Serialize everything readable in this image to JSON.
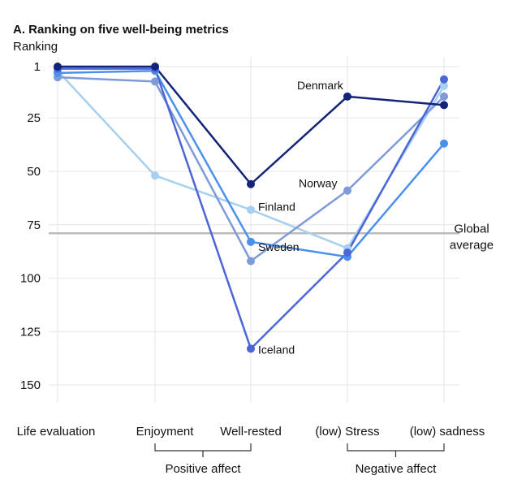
{
  "chart_data": {
    "type": "line",
    "title": "A. Ranking on five well-being metrics",
    "ylabel": "Ranking",
    "ylim_inverted": [
      1,
      160
    ],
    "y_ticks": [
      1,
      25,
      50,
      75,
      100,
      125,
      150
    ],
    "categories": [
      "Life evaluation",
      "Enjoyment",
      "Well-rested",
      "(low) Stress",
      "(low) sadness"
    ],
    "groups": [
      {
        "label": "Positive affect",
        "from": "Enjoyment",
        "to": "Well-rested"
      },
      {
        "label": "Negative affect",
        "from": "(low) Stress",
        "to": "(low) sadness"
      }
    ],
    "reference_line": {
      "value": 79,
      "label_line1": "Global",
      "label_line2": "average"
    },
    "grid": true,
    "series": [
      {
        "name": "Denmark",
        "color": "#14237a",
        "values": [
          1,
          1,
          56,
          15,
          19
        ]
      },
      {
        "name": "Norway",
        "color": "#7f9ad8",
        "values": [
          6,
          8,
          92,
          59,
          15
        ]
      },
      {
        "name": "Finland",
        "color": "#a7d0f0",
        "values": [
          3,
          52,
          68,
          86,
          10
        ]
      },
      {
        "name": "Sweden",
        "color": "#4a91ee",
        "values": [
          4,
          3,
          83,
          90,
          37
        ]
      },
      {
        "name": "Iceland",
        "color": "#4d66d6",
        "values": [
          2,
          2,
          133,
          88,
          7
        ]
      }
    ],
    "annotations": [
      {
        "series": "Denmark",
        "point": 3,
        "dx": -62,
        "dy": -9
      },
      {
        "series": "Norway",
        "point": 3,
        "dx": -60,
        "dy": -4
      },
      {
        "series": "Finland",
        "point": 2,
        "dx": 9,
        "dy": 1
      },
      {
        "series": "Sweden",
        "point": 2,
        "dx": 9,
        "dy": 11
      },
      {
        "series": "Iceland",
        "point": 2,
        "dx": 9,
        "dy": 6
      }
    ]
  }
}
